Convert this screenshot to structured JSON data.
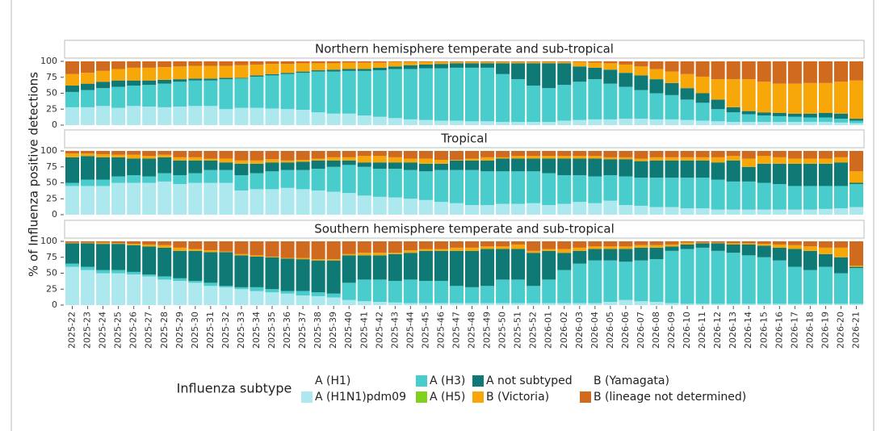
{
  "y_label": "% of Influenza positive detections",
  "categories": [
    "2025-22",
    "2025-23",
    "2025-24",
    "2025-25",
    "2025-26",
    "2025-27",
    "2025-28",
    "2025-29",
    "2025-30",
    "2025-31",
    "2025-32",
    "2025-33",
    "2025-34",
    "2025-35",
    "2025-36",
    "2025-37",
    "2025-38",
    "2025-39",
    "2025-40",
    "2025-41",
    "2025-42",
    "2025-43",
    "2025-44",
    "2025-45",
    "2025-46",
    "2025-47",
    "2025-48",
    "2025-49",
    "2025-50",
    "2025-51",
    "2025-52",
    "2026-01",
    "2026-02",
    "2026-03",
    "2026-04",
    "2026-05",
    "2026-06",
    "2026-07",
    "2026-08",
    "2026-09",
    "2026-10",
    "2026-11",
    "2026-12",
    "2026-13",
    "2026-14",
    "2026-15",
    "2026-16",
    "2026-17",
    "2026-18",
    "2026-19",
    "2026-20",
    "2026-21"
  ],
  "legend": {
    "title": "Influenza subtype",
    "entries": [
      {
        "name": "A (H1)",
        "color": "#ffffff"
      },
      {
        "name": "A (H1N1)pdm09",
        "color": "#aee8ef"
      },
      {
        "name": "A (H3)",
        "color": "#48cccc"
      },
      {
        "name": "A (H5)",
        "color": "#7fd11b"
      },
      {
        "name": "A not subtyped",
        "color": "#0f7a75"
      },
      {
        "name": "B (Victoria)",
        "color": "#f7a707"
      },
      {
        "name": "B (Yamagata)",
        "color": "#ffffff"
      },
      {
        "name": "B (lineage not determined)",
        "color": "#cf6a1f"
      }
    ]
  },
  "chart_data": [
    {
      "type": "bar",
      "stacked": true,
      "title": "Northern hemisphere temperate and sub-tropical",
      "ylim": [
        0,
        100
      ],
      "yticks": [
        0,
        25,
        50,
        75,
        100
      ],
      "series": [
        {
          "name": "A (H1N1)pdm09",
          "values": [
            28,
            28,
            30,
            27,
            30,
            29,
            28,
            29,
            30,
            30,
            25,
            27,
            27,
            26,
            25,
            24,
            20,
            18,
            18,
            15,
            13,
            11,
            9,
            8,
            7,
            7,
            6,
            6,
            5,
            5,
            5,
            5,
            7,
            8,
            9,
            9,
            10,
            10,
            9,
            9,
            8,
            7,
            6,
            5,
            5,
            5,
            5,
            5,
            5,
            5,
            4,
            3
          ]
        },
        {
          "name": "A (H3)",
          "values": [
            24,
            27,
            28,
            33,
            32,
            34,
            37,
            39,
            40,
            40,
            47,
            46,
            49,
            52,
            55,
            58,
            64,
            66,
            67,
            70,
            73,
            77,
            79,
            81,
            82,
            83,
            84,
            84,
            75,
            67,
            57,
            53,
            56,
            60,
            63,
            56,
            50,
            45,
            41,
            38,
            32,
            28,
            19,
            15,
            12,
            10,
            9,
            8,
            7,
            7,
            6,
            4
          ]
        },
        {
          "name": "A not subtyped",
          "values": [
            10,
            10,
            10,
            10,
            8,
            7,
            6,
            4,
            3,
            3,
            2,
            1,
            2,
            2,
            2,
            2,
            2,
            3,
            3,
            3,
            4,
            4,
            6,
            6,
            7,
            7,
            7,
            7,
            17,
            25,
            35,
            39,
            34,
            24,
            18,
            22,
            22,
            23,
            22,
            19,
            18,
            15,
            15,
            8,
            5,
            5,
            5,
            5,
            6,
            7,
            8,
            3
          ]
        },
        {
          "name": "B (Victoria)",
          "values": [
            18,
            17,
            17,
            18,
            20,
            20,
            20,
            20,
            20,
            20,
            19,
            20,
            17,
            16,
            14,
            13,
            11,
            10,
            10,
            10,
            8,
            7,
            5,
            4,
            3,
            2,
            2,
            2,
            2,
            2,
            2,
            2,
            2,
            7,
            8,
            10,
            13,
            14,
            16,
            18,
            22,
            26,
            32,
            44,
            50,
            48,
            46,
            47,
            48,
            47,
            50,
            60
          ]
        },
        {
          "name": "B (lineage not determined)",
          "values": [
            20,
            18,
            15,
            12,
            10,
            10,
            9,
            8,
            7,
            7,
            7,
            6,
            5,
            4,
            4,
            3,
            3,
            3,
            2,
            2,
            2,
            1,
            1,
            1,
            1,
            1,
            1,
            1,
            1,
            1,
            1,
            1,
            1,
            1,
            2,
            3,
            5,
            8,
            12,
            16,
            20,
            24,
            28,
            28,
            28,
            32,
            35,
            35,
            34,
            34,
            32,
            30
          ]
        }
      ]
    },
    {
      "type": "bar",
      "stacked": true,
      "title": "Tropical",
      "ylim": [
        0,
        100
      ],
      "yticks": [
        0,
        25,
        50,
        75,
        100
      ],
      "series": [
        {
          "name": "A (H1N1)pdm09",
          "values": [
            45,
            45,
            45,
            50,
            50,
            50,
            52,
            48,
            50,
            50,
            50,
            38,
            40,
            40,
            42,
            40,
            38,
            36,
            34,
            30,
            28,
            27,
            25,
            23,
            20,
            18,
            15,
            15,
            17,
            17,
            18,
            15,
            17,
            20,
            18,
            22,
            15,
            14,
            12,
            12,
            10,
            10,
            8,
            8,
            8,
            8,
            8,
            8,
            8,
            9,
            10,
            12
          ]
        },
        {
          "name": "A (H3)",
          "values": [
            5,
            10,
            10,
            10,
            12,
            10,
            13,
            14,
            15,
            20,
            20,
            24,
            25,
            28,
            28,
            30,
            34,
            39,
            44,
            45,
            44,
            45,
            45,
            45,
            50,
            52,
            55,
            53,
            51,
            51,
            50,
            50,
            45,
            42,
            42,
            40,
            45,
            44,
            46,
            46,
            48,
            48,
            47,
            44,
            44,
            42,
            40,
            37,
            37,
            36,
            35,
            36
          ]
        },
        {
          "name": "A not subtyped",
          "values": [
            40,
            37,
            35,
            30,
            26,
            28,
            25,
            23,
            20,
            15,
            12,
            18,
            15,
            14,
            12,
            13,
            13,
            10,
            7,
            7,
            10,
            10,
            12,
            12,
            10,
            15,
            15,
            17,
            20,
            20,
            20,
            23,
            26,
            26,
            28,
            25,
            27,
            26,
            27,
            27,
            27,
            27,
            27,
            33,
            23,
            30,
            32,
            35,
            35,
            35,
            37,
            2
          ]
        },
        {
          "name": "B (Victoria)",
          "values": [
            6,
            4,
            5,
            4,
            6,
            4,
            4,
            5,
            5,
            3,
            6,
            5,
            5,
            5,
            3,
            3,
            3,
            5,
            5,
            10,
            10,
            8,
            6,
            8,
            6,
            1,
            3,
            5,
            2,
            4,
            4,
            4,
            4,
            4,
            4,
            3,
            3,
            4,
            5,
            5,
            5,
            5,
            8,
            7,
            13,
            12,
            10,
            8,
            8,
            8,
            8,
            18
          ]
        },
        {
          "name": "B (lineage not determined)",
          "values": [
            4,
            4,
            5,
            6,
            6,
            8,
            6,
            10,
            10,
            12,
            12,
            15,
            15,
            13,
            15,
            14,
            12,
            10,
            10,
            8,
            8,
            10,
            12,
            12,
            14,
            14,
            12,
            10,
            10,
            8,
            8,
            8,
            8,
            8,
            8,
            10,
            10,
            12,
            10,
            10,
            10,
            10,
            10,
            8,
            12,
            8,
            10,
            12,
            12,
            12,
            10,
            32
          ]
        }
      ]
    },
    {
      "type": "bar",
      "stacked": true,
      "title": "Southern hemisphere temperate and sub-tropical",
      "ylim": [
        0,
        100
      ],
      "yticks": [
        0,
        25,
        50,
        75,
        100
      ],
      "series": [
        {
          "name": "A (H1N1)pdm09",
          "values": [
            60,
            55,
            50,
            50,
            48,
            45,
            40,
            38,
            35,
            30,
            28,
            25,
            22,
            20,
            18,
            15,
            14,
            12,
            8,
            6,
            5,
            4,
            3,
            3,
            3,
            3,
            3,
            3,
            3,
            3,
            3,
            3,
            3,
            3,
            3,
            5,
            8,
            6,
            5,
            3,
            2,
            2,
            2,
            2,
            2,
            2,
            2,
            2,
            2,
            2,
            2,
            2
          ]
        },
        {
          "name": "A (H3)",
          "values": [
            5,
            5,
            5,
            5,
            4,
            3,
            5,
            4,
            3,
            5,
            2,
            3,
            6,
            5,
            4,
            7,
            6,
            6,
            27,
            34,
            35,
            34,
            37,
            35,
            35,
            27,
            25,
            27,
            37,
            37,
            27,
            37,
            52,
            62,
            67,
            65,
            60,
            64,
            67,
            82,
            86,
            88,
            83,
            80,
            76,
            73,
            68,
            58,
            53,
            58,
            48,
            56
          ]
        },
        {
          "name": "A not subtyped",
          "values": [
            32,
            37,
            41,
            41,
            42,
            44,
            45,
            43,
            47,
            48,
            53,
            50,
            48,
            50,
            51,
            50,
            50,
            52,
            43,
            38,
            38,
            42,
            42,
            47,
            47,
            55,
            57,
            58,
            48,
            48,
            52,
            45,
            27,
            20,
            18,
            18,
            20,
            20,
            18,
            7,
            7,
            7,
            12,
            13,
            17,
            18,
            20,
            28,
            30,
            20,
            25,
            2
          ]
        },
        {
          "name": "B (Victoria)",
          "values": [
            1,
            1,
            2,
            1,
            2,
            3,
            4,
            5,
            3,
            3,
            1,
            2,
            2,
            1,
            1,
            2,
            2,
            2,
            2,
            4,
            4,
            2,
            4,
            3,
            3,
            5,
            5,
            4,
            4,
            7,
            3,
            3,
            6,
            5,
            4,
            4,
            4,
            4,
            4,
            3,
            3,
            1,
            1,
            2,
            2,
            3,
            5,
            6,
            7,
            10,
            15,
            2
          ]
        },
        {
          "name": "B (lineage not determined)",
          "values": [
            2,
            2,
            2,
            3,
            4,
            5,
            6,
            10,
            12,
            14,
            16,
            20,
            22,
            24,
            26,
            26,
            28,
            28,
            20,
            18,
            18,
            18,
            14,
            12,
            12,
            10,
            10,
            8,
            8,
            5,
            15,
            12,
            12,
            10,
            8,
            8,
            8,
            6,
            6,
            5,
            2,
            2,
            2,
            3,
            3,
            4,
            5,
            6,
            8,
            10,
            10,
            38
          ]
        }
      ]
    }
  ]
}
